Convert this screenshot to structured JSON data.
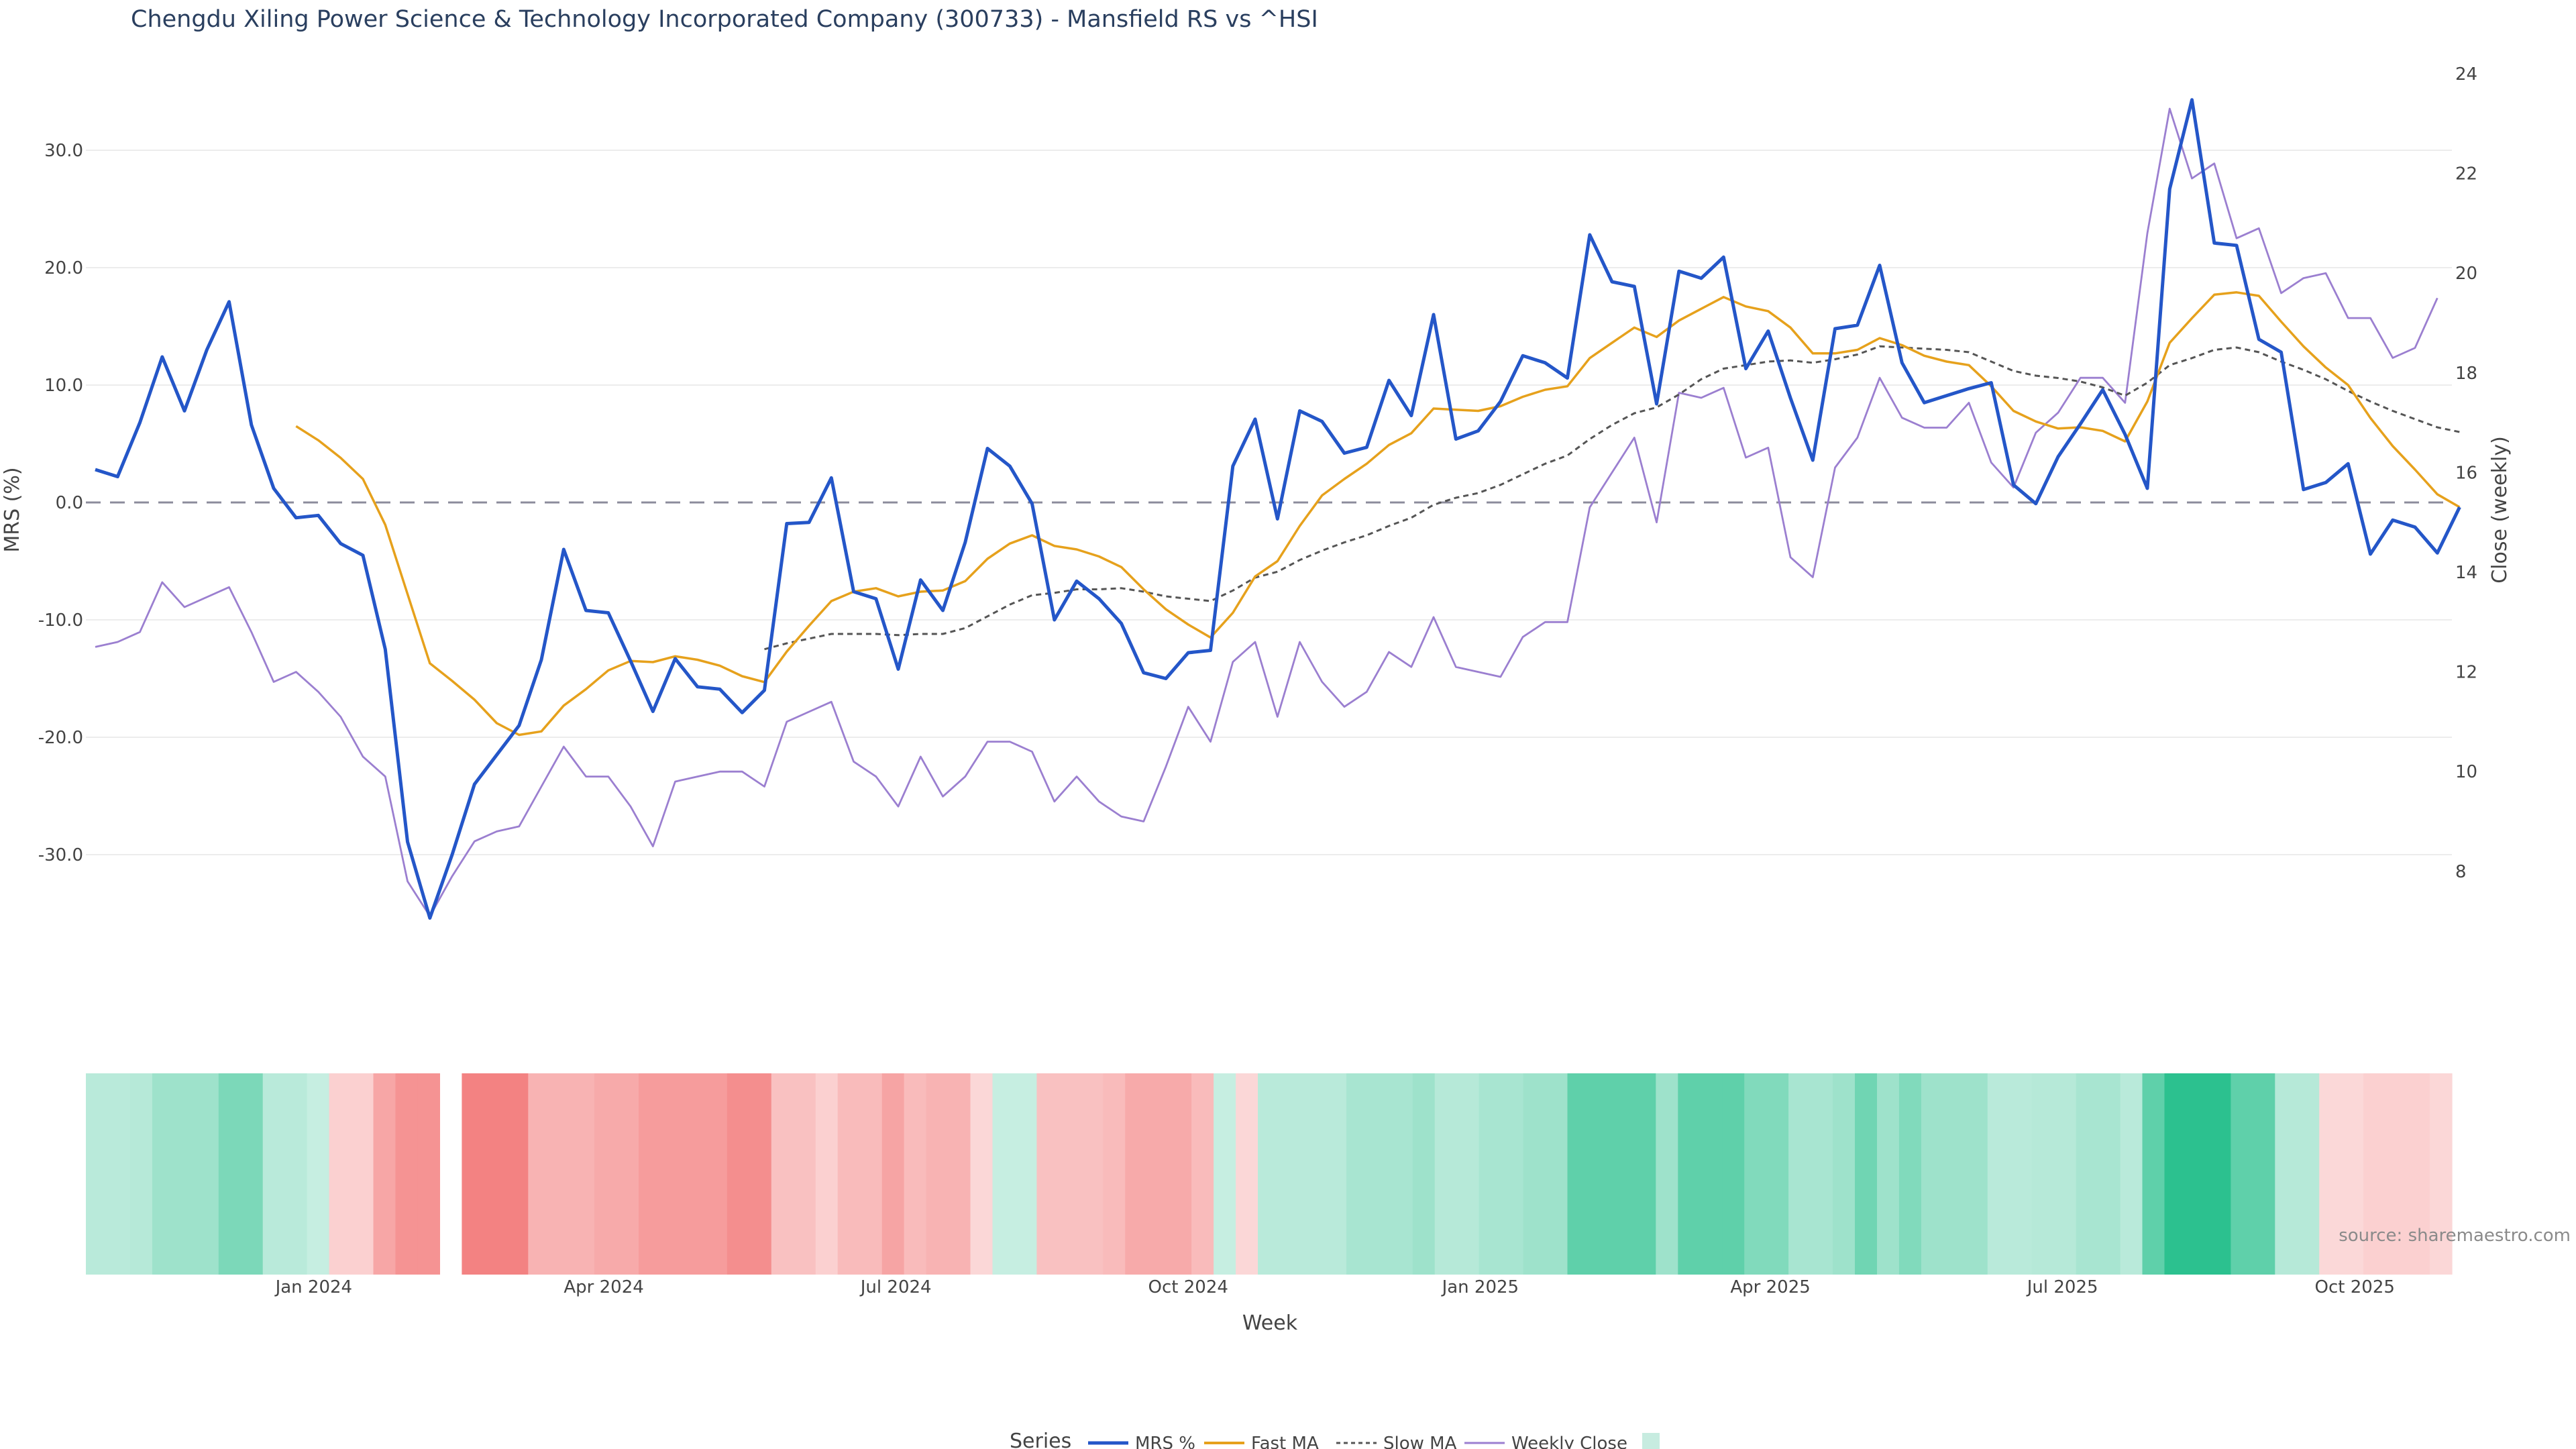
{
  "chart_data": {
    "type": "line",
    "title": "Chengdu Xiling Power Science & Technology Incorporated Company (300733) - Mansfield RS vs ^HSI",
    "xlabel": "Week",
    "ylabel_left": "MRS (%)",
    "ylabel_right": "Close (weekly)",
    "ylim_left": [
      -37,
      38
    ],
    "ylim_right": [
      7,
      24.6
    ],
    "left_ticks": [
      "30.0",
      "20.0",
      "10.0",
      "0.0",
      "-10.0",
      "-20.0",
      "-30.0"
    ],
    "left_tick_values": [
      30,
      20,
      10,
      0,
      -10,
      -20,
      -30
    ],
    "right_ticks": [
      "24",
      "22",
      "20",
      "18",
      "16",
      "14",
      "12",
      "10",
      "8"
    ],
    "right_tick_values": [
      24,
      22,
      20,
      18,
      16,
      14,
      12,
      10,
      8
    ],
    "x_ticks": [
      "Jan 2024",
      "Apr 2024",
      "Jul 2024",
      "Oct 2024",
      "Jan 2025",
      "Apr 2025",
      "Jul 2025",
      "Oct 2025"
    ],
    "x_tick_weeks": [
      9.8,
      22.8,
      35.9,
      49,
      62.1,
      75.1,
      88.2,
      101.3
    ],
    "series": [
      {
        "name": "MRS %",
        "color": "#2456c8",
        "values": [
          2.8,
          2.2,
          6.8,
          12.4,
          7.8,
          13.0,
          17.1,
          6.6,
          1.2,
          -1.3,
          -1.1,
          -3.5,
          -4.5,
          -12.5,
          -28.9,
          -35.4,
          -30.0,
          -24.0,
          -21.5,
          -19.0,
          -13.4,
          -4.0,
          -9.2,
          -9.4,
          -13.5,
          -17.8,
          -13.3,
          -15.7,
          -15.9,
          -17.9,
          -16.0,
          -1.8,
          -1.7,
          2.1,
          -7.6,
          -8.2,
          -14.2,
          -6.6,
          -9.2,
          -3.4,
          4.6,
          3.1,
          -0.1,
          -10.0,
          -6.7,
          -8.2,
          -10.3,
          -14.5,
          -15.0,
          -12.8,
          -12.6,
          3.1,
          7.1,
          -1.4,
          7.8,
          6.9,
          4.2,
          4.7,
          10.4,
          7.4,
          16.0,
          5.4,
          6.1,
          8.6,
          12.5,
          11.9,
          10.6,
          22.8,
          18.8,
          18.4,
          8.4,
          19.7,
          19.1,
          20.9,
          11.4,
          14.6,
          8.9,
          3.6,
          14.8,
          15.1,
          20.2,
          11.9,
          8.5,
          9.1,
          9.7,
          10.2,
          1.5,
          -0.1,
          3.9,
          6.7,
          9.6,
          5.8,
          1.2,
          26.7,
          34.3,
          22.1,
          21.9,
          13.9,
          12.8,
          1.1,
          1.7,
          3.3,
          -4.4,
          -1.5,
          -2.1,
          -4.3,
          -0.4
        ]
      },
      {
        "name": "Fast MA",
        "color": "#e6a11c",
        "values": [
          null,
          null,
          null,
          null,
          null,
          null,
          null,
          null,
          null,
          6.5,
          5.3,
          3.8,
          2.0,
          -1.9,
          -7.8,
          -13.7,
          -15.2,
          -16.8,
          -18.8,
          -19.8,
          -19.5,
          -17.3,
          -15.9,
          -14.3,
          -13.5,
          -13.6,
          -13.1,
          -13.4,
          -13.9,
          -14.8,
          -15.3,
          -12.7,
          -10.5,
          -8.4,
          -7.6,
          -7.3,
          -8.0,
          -7.6,
          -7.5,
          -6.7,
          -4.8,
          -3.5,
          -2.8,
          -3.7,
          -4.0,
          -4.6,
          -5.5,
          -7.4,
          -9.1,
          -10.4,
          -11.5,
          -9.4,
          -6.3,
          -5.0,
          -2.0,
          0.6,
          2.0,
          3.3,
          4.9,
          5.9,
          8.0,
          7.9,
          7.8,
          8.2,
          9.0,
          9.6,
          9.9,
          12.3,
          13.6,
          14.9,
          14.1,
          15.5,
          16.5,
          17.5,
          16.7,
          16.3,
          14.9,
          12.7,
          12.7,
          13.0,
          14.0,
          13.4,
          12.5,
          12.0,
          11.7,
          9.9,
          7.8,
          6.9,
          6.3,
          6.4,
          6.1,
          5.2,
          8.6,
          13.6,
          15.7,
          17.7,
          17.9,
          17.6,
          15.4,
          13.3,
          11.5,
          10.0,
          7.2,
          4.8,
          2.8,
          0.7,
          -0.4
        ]
      },
      {
        "name": "Slow MA",
        "color": "#555555",
        "dash": true,
        "values": [
          null,
          null,
          null,
          null,
          null,
          null,
          null,
          null,
          null,
          null,
          null,
          null,
          null,
          null,
          null,
          null,
          null,
          null,
          null,
          null,
          null,
          null,
          null,
          null,
          null,
          null,
          null,
          null,
          null,
          null,
          -12.5,
          -12.0,
          -11.6,
          -11.2,
          -11.2,
          -11.2,
          -11.3,
          -11.2,
          -11.2,
          -10.7,
          -9.7,
          -8.7,
          -7.9,
          -7.7,
          -7.4,
          -7.4,
          -7.3,
          -7.6,
          -8.0,
          -8.2,
          -8.4,
          -7.5,
          -6.4,
          -5.9,
          -4.9,
          -4.1,
          -3.4,
          -2.8,
          -2.0,
          -1.3,
          -0.2,
          0.4,
          0.8,
          1.5,
          2.4,
          3.3,
          4.0,
          5.4,
          6.6,
          7.6,
          8.1,
          9.2,
          10.5,
          11.4,
          11.7,
          12.0,
          12.1,
          11.9,
          12.2,
          12.6,
          13.3,
          13.2,
          13.1,
          13.0,
          12.8,
          12.0,
          11.2,
          10.8,
          10.6,
          10.3,
          9.8,
          9.1,
          10.2,
          11.7,
          12.3,
          13.0,
          13.2,
          12.8,
          12.0,
          11.3,
          10.5,
          9.5,
          8.6,
          7.8,
          7.1,
          6.4,
          6.0
        ]
      },
      {
        "name": "Weekly Close",
        "color": "#9b7fd0",
        "axis": "right",
        "values": [
          12.5,
          12.6,
          12.8,
          13.8,
          13.3,
          13.5,
          13.7,
          12.8,
          11.8,
          12.0,
          11.6,
          11.1,
          10.3,
          9.9,
          7.8,
          7.1,
          7.9,
          8.6,
          8.8,
          8.9,
          9.7,
          10.5,
          9.9,
          9.9,
          9.3,
          8.5,
          9.8,
          9.9,
          10.0,
          10.0,
          9.7,
          11.0,
          11.2,
          11.4,
          10.2,
          9.9,
          9.3,
          10.3,
          9.5,
          9.9,
          10.6,
          10.6,
          10.4,
          9.4,
          9.9,
          9.4,
          9.1,
          9.0,
          10.1,
          11.3,
          10.6,
          12.2,
          12.6,
          11.1,
          12.6,
          11.8,
          11.3,
          11.6,
          12.4,
          12.1,
          13.1,
          12.1,
          12.0,
          11.9,
          12.7,
          13.0,
          13.0,
          15.3,
          16.0,
          16.7,
          15.0,
          17.6,
          17.5,
          17.7,
          16.3,
          16.5,
          14.3,
          13.9,
          16.1,
          16.7,
          17.9,
          17.1,
          16.9,
          16.9,
          17.4,
          16.2,
          15.7,
          16.8,
          17.2,
          17.9,
          17.9,
          17.4,
          20.8,
          23.3,
          21.9,
          22.2,
          20.7,
          20.9,
          19.6,
          19.9,
          20.0,
          19.1,
          19.1,
          18.3,
          18.5,
          19.5
        ]
      }
    ],
    "heatmap_values": [
      4.6,
      4.6,
      5.2,
      9.3,
      9.3,
      9.3,
      15.2,
      15.2,
      4.6,
      4.6,
      2.4,
      -2.8,
      -2.8,
      -12.2,
      -16.3,
      -16.3,
      null,
      -20.1,
      -20.1,
      -20.1,
      -9.3,
      -9.3,
      -9.3,
      -11.2,
      -11.2,
      -14.4,
      -14.4,
      -14.4,
      -14.4,
      -17.5,
      -17.5,
      -6.2,
      -6.2,
      -2.8,
      -7.6,
      -7.6,
      -12.5,
      -7.6,
      -9.3,
      -9.3,
      -1.3,
      2.4,
      2.4,
      -6.2,
      -6.2,
      -6.2,
      -7.6,
      -11.2,
      -11.2,
      -11.2,
      -7.6,
      2.4,
      -1.3,
      4.6,
      4.6,
      4.6,
      4.6,
      7.6,
      7.6,
      7.6,
      9.3,
      5.2,
      5.2,
      7.6,
      7.6,
      9.3,
      9.3,
      20.1,
      20.1,
      20.1,
      20.1,
      9.3,
      20.1,
      20.1,
      20.1,
      14.3,
      14.3,
      7.6,
      7.6,
      9.3,
      17.2,
      9.3,
      14.3,
      9.3,
      9.3,
      9.3,
      4.6,
      4.6,
      5.2,
      5.2,
      7.6,
      7.6,
      4.6,
      20.1,
      29.0,
      29.0,
      29.0,
      20.1,
      20.1,
      5.2,
      5.2,
      -1.2,
      -1.2,
      -2.8,
      -2.8,
      -2.8,
      -1.3
    ],
    "legend_title": "Series",
    "legend_position": "bottom-center",
    "legend_entries": [
      "MRS %",
      "Fast MA",
      "Slow MA",
      "Weekly Close"
    ],
    "source_text": "source: sharemaestro.com",
    "colors": {
      "positive": "#26bf8c",
      "negative": "#ef5555",
      "grid": "#ececec",
      "zero_line": "#8c8c9c",
      "legend_swatch": "#c7ece0"
    }
  }
}
